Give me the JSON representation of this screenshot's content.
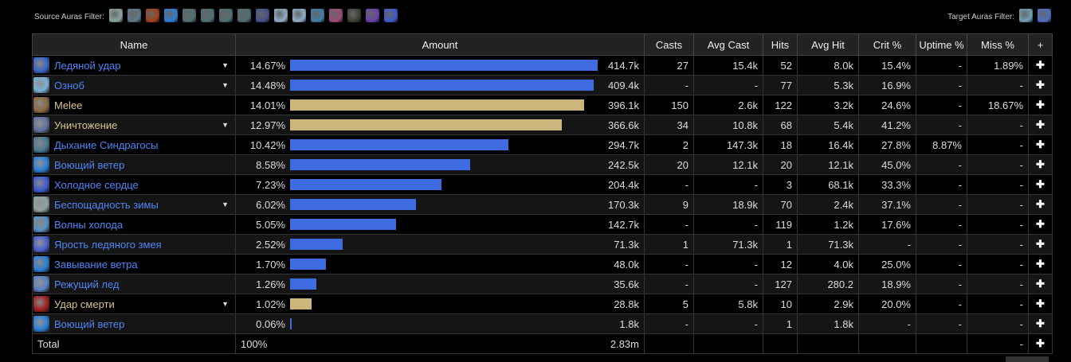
{
  "source_filter_label": "Source Auras Filter:",
  "target_filter_label": "Target Auras Filter:",
  "source_auras": [
    "#8fa3a3",
    "#5d7a88",
    "#a3401a",
    "#2b7fd6",
    "#4f6e74",
    "#4f6e74",
    "#4f6e74",
    "#4f6e74",
    "#44528c",
    "#8fb0c8",
    "#8fb0c8",
    "#3f7fa8",
    "#9c4a7a",
    "#3e4036",
    "#6a3fb0",
    "#3e5ad0"
  ],
  "target_auras": [
    "#6fa0b8",
    "#4c6fc8"
  ],
  "headers": [
    "Name",
    "Amount",
    "Casts",
    "Avg Cast",
    "Hits",
    "Avg Hit",
    "Crit %",
    "Uptime %",
    "Miss %",
    "+"
  ],
  "rows": [
    {
      "name": "Ледяной удар",
      "icon": "#3a66c8",
      "tan": false,
      "dd": true,
      "pct": "14.67%",
      "frac": 14.67,
      "amount": "414.7k",
      "casts": "27",
      "avg_cast": "15.4k",
      "hits": "52",
      "avg_hit": "8.0k",
      "crit": "15.4%",
      "uptime": "-",
      "miss": "1.89%"
    },
    {
      "name": "Озноб",
      "icon": "#7ab0d8",
      "tan": false,
      "dd": true,
      "pct": "14.48%",
      "frac": 14.48,
      "amount": "409.4k",
      "casts": "-",
      "avg_cast": "-",
      "hits": "77",
      "avg_hit": "5.3k",
      "crit": "16.9%",
      "uptime": "-",
      "miss": "-"
    },
    {
      "name": "Melee",
      "icon": "#8a6a40",
      "tan": true,
      "dd": false,
      "pct": "14.01%",
      "frac": 14.01,
      "amount": "396.1k",
      "casts": "150",
      "avg_cast": "2.6k",
      "hits": "122",
      "avg_hit": "3.2k",
      "crit": "24.6%",
      "uptime": "-",
      "miss": "18.67%"
    },
    {
      "name": "Уничтожение",
      "icon": "#6070a0",
      "tan": true,
      "dd": true,
      "pct": "12.97%",
      "frac": 12.97,
      "amount": "366.6k",
      "casts": "34",
      "avg_cast": "10.8k",
      "hits": "68",
      "avg_hit": "5.4k",
      "crit": "41.2%",
      "uptime": "-",
      "miss": "-"
    },
    {
      "name": "Дыхание Синдрагосы",
      "icon": "#4a7a90",
      "tan": false,
      "dd": false,
      "pct": "10.42%",
      "frac": 10.42,
      "amount": "294.7k",
      "casts": "2",
      "avg_cast": "147.3k",
      "hits": "18",
      "avg_hit": "16.4k",
      "crit": "27.8%",
      "uptime": "8.87%",
      "miss": "-"
    },
    {
      "name": "Воющий ветер",
      "icon": "#2b7fd6",
      "tan": false,
      "dd": false,
      "pct": "8.58%",
      "frac": 8.58,
      "amount": "242.5k",
      "casts": "20",
      "avg_cast": "12.1k",
      "hits": "20",
      "avg_hit": "12.1k",
      "crit": "45.0%",
      "uptime": "-",
      "miss": "-"
    },
    {
      "name": "Холодное сердце",
      "icon": "#3e5ad0",
      "tan": false,
      "dd": false,
      "pct": "7.23%",
      "frac": 7.23,
      "amount": "204.4k",
      "casts": "-",
      "avg_cast": "-",
      "hits": "3",
      "avg_hit": "68.1k",
      "crit": "33.3%",
      "uptime": "-",
      "miss": "-"
    },
    {
      "name": "Беспощадность зимы",
      "icon": "#8fa3a3",
      "tan": false,
      "dd": true,
      "pct": "6.02%",
      "frac": 6.02,
      "amount": "170.3k",
      "casts": "9",
      "avg_cast": "18.9k",
      "hits": "70",
      "avg_hit": "2.4k",
      "crit": "37.1%",
      "uptime": "-",
      "miss": "-"
    },
    {
      "name": "Волны холода",
      "icon": "#5a90c0",
      "tan": false,
      "dd": false,
      "pct": "5.05%",
      "frac": 5.05,
      "amount": "142.7k",
      "casts": "-",
      "avg_cast": "-",
      "hits": "119",
      "avg_hit": "1.2k",
      "crit": "17.6%",
      "uptime": "-",
      "miss": "-"
    },
    {
      "name": "Ярость ледяного змея",
      "icon": "#4a60d0",
      "tan": false,
      "dd": false,
      "pct": "2.52%",
      "frac": 2.52,
      "amount": "71.3k",
      "casts": "1",
      "avg_cast": "71.3k",
      "hits": "1",
      "avg_hit": "71.3k",
      "crit": "-",
      "uptime": "-",
      "miss": "-"
    },
    {
      "name": "Завывание ветра",
      "icon": "#2b7fd6",
      "tan": false,
      "dd": false,
      "pct": "1.70%",
      "frac": 1.7,
      "amount": "48.0k",
      "casts": "-",
      "avg_cast": "-",
      "hits": "12",
      "avg_hit": "4.0k",
      "crit": "25.0%",
      "uptime": "-",
      "miss": "-"
    },
    {
      "name": "Режущий лед",
      "icon": "#5a80c0",
      "tan": false,
      "dd": false,
      "pct": "1.26%",
      "frac": 1.26,
      "amount": "35.6k",
      "casts": "-",
      "avg_cast": "-",
      "hits": "127",
      "avg_hit": "280.2",
      "crit": "18.9%",
      "uptime": "-",
      "miss": "-"
    },
    {
      "name": "Удар смерти",
      "icon": "#a02020",
      "tan": true,
      "dd": true,
      "pct": "1.02%",
      "frac": 1.02,
      "amount": "28.8k",
      "casts": "5",
      "avg_cast": "5.8k",
      "hits": "10",
      "avg_hit": "2.9k",
      "crit": "20.0%",
      "uptime": "-",
      "miss": "-"
    },
    {
      "name": "Воющий ветер",
      "icon": "#2b7fd6",
      "tan": false,
      "dd": false,
      "pct": "0.06%",
      "frac": 0.06,
      "amount": "1.8k",
      "casts": "-",
      "avg_cast": "-",
      "hits": "1",
      "avg_hit": "1.8k",
      "crit": "-",
      "uptime": "-",
      "miss": "-"
    }
  ],
  "total": {
    "label": "Total",
    "pct": "100%",
    "amount": "2.83m",
    "miss": "-"
  }
}
